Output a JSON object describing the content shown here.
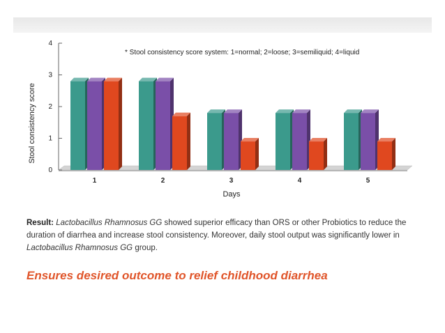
{
  "chart_data": {
    "type": "bar",
    "title": "",
    "note": "* Stool consistency score system: 1=normal; 2=loose; 3=semiliquid; 4=liquid",
    "xlabel": "Days",
    "ylabel": "Stool consistency score",
    "categories": [
      "1",
      "2",
      "3",
      "4",
      "5"
    ],
    "ylim": [
      0,
      4
    ],
    "yticks": [
      "0",
      "1",
      "2",
      "3",
      "4"
    ],
    "series": [
      {
        "values": [
          2.8,
          2.8,
          1.8,
          1.8,
          1.8
        ],
        "color": "#3b9a8c"
      },
      {
        "values": [
          2.8,
          2.8,
          1.8,
          1.8,
          1.8
        ],
        "color": "#7a4fa8"
      },
      {
        "values": [
          2.8,
          1.7,
          0.9,
          0.9,
          0.9
        ],
        "color": "#e0481f"
      }
    ],
    "grid": false,
    "legend": "none",
    "style": "3d"
  },
  "result": {
    "label": "Result:",
    "p1": " ",
    "i1": "Lactobacillus Rhamnosus GG",
    "p2": " showed superior efficacy than ORS or other Probiotics to reduce the duration of diarrhea and increase stool consistency. Moreover, daily stool output was significantly lower in ",
    "i2": "Lactobacillus Rhamnosus GG",
    "p3": " group."
  },
  "tagline": "Ensures desired outcome to relief childhood diarrhea"
}
